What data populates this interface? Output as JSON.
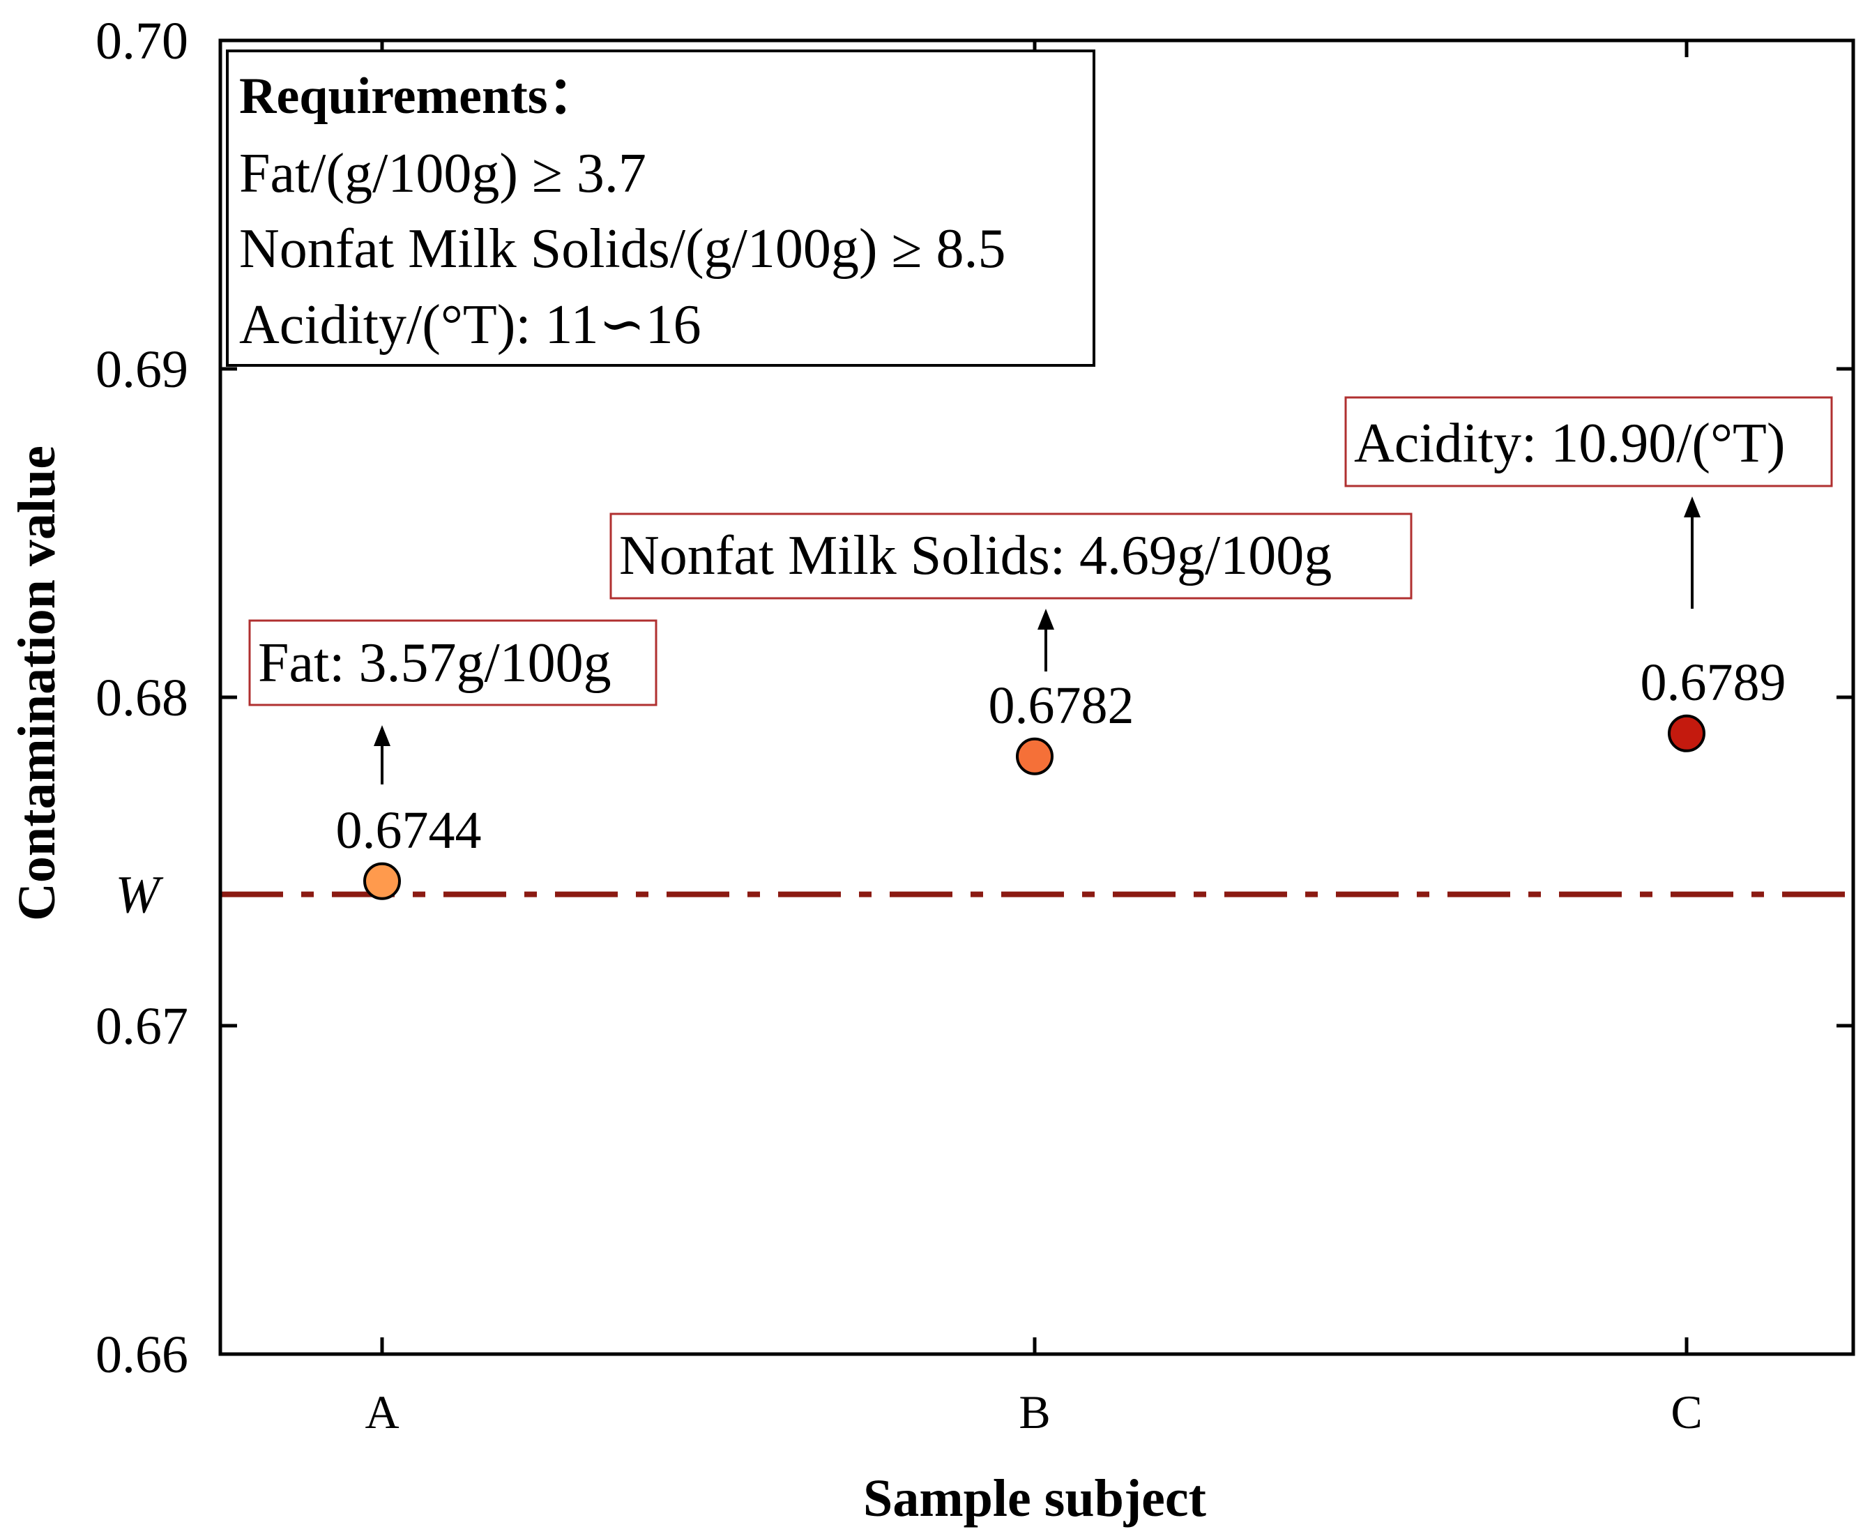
{
  "chart_data": {
    "type": "scatter",
    "xlabel": "Sample subject",
    "ylabel": "Contamination value",
    "categories": [
      "A",
      "B",
      "C"
    ],
    "ylim": [
      0.66,
      0.7
    ],
    "yticks": [
      "0.66",
      "0.67",
      "0.68",
      "0.69",
      "0.70"
    ],
    "grid": false,
    "points": [
      {
        "category": "A",
        "value": 0.6744,
        "label": "0.6744",
        "color": "#FF9A4D",
        "note": "Fat: 3.57g/100g"
      },
      {
        "category": "B",
        "value": 0.6782,
        "label": "0.6782",
        "color": "#F57038",
        "note": "Nonfat Milk Solids: 4.69g/100g"
      },
      {
        "category": "C",
        "value": 0.6789,
        "label": "0.6789",
        "color": "#C41A0E",
        "note": "Acidity: 10.90/(°T)"
      }
    ],
    "reference_line": {
      "label": "W",
      "value": 0.674,
      "color": "#8B1A12",
      "style": "dash-dot"
    },
    "requirements_box": {
      "title": "Requirements：",
      "lines": [
        "Fat/(g/100g) ≥ 3.7",
        "Nonfat Milk Solids/(g/100g) ≥ 8.5",
        "Acidity/(°T): 11∽16"
      ]
    },
    "note_box_border_color": "#B03030"
  }
}
